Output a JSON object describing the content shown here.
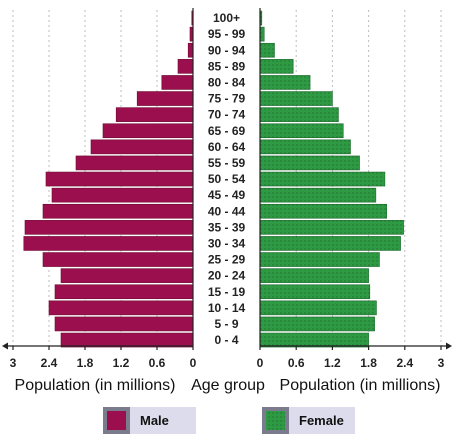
{
  "chart_data": {
    "type": "bar",
    "subtype": "population-pyramid",
    "title": "",
    "categories": [
      "100+",
      "95 - 99",
      "90 - 94",
      "85 - 89",
      "80 - 84",
      "75 - 79",
      "70 - 74",
      "65 - 69",
      "60 - 64",
      "55 - 59",
      "50 - 54",
      "45 - 49",
      "40 - 44",
      "35 - 39",
      "30 - 34",
      "25 - 29",
      "20 - 24",
      "15 - 19",
      "10 - 14",
      "5 - 9",
      "0 - 4"
    ],
    "series": [
      {
        "name": "Male",
        "color": "#9c0f4e",
        "values": [
          0.02,
          0.05,
          0.08,
          0.25,
          0.52,
          0.93,
          1.28,
          1.5,
          1.7,
          1.95,
          2.45,
          2.35,
          2.5,
          2.8,
          2.82,
          2.5,
          2.2,
          2.3,
          2.4,
          2.3,
          2.2
        ]
      },
      {
        "name": "Female",
        "color": "#2e9a43",
        "values": [
          0.03,
          0.07,
          0.24,
          0.55,
          0.83,
          1.2,
          1.3,
          1.38,
          1.5,
          1.65,
          2.07,
          1.92,
          2.1,
          2.38,
          2.33,
          1.98,
          1.8,
          1.82,
          1.93,
          1.9,
          1.8
        ]
      }
    ],
    "xlabel_left": "Population (in millions)",
    "xlabel_center": "Age group",
    "xlabel_right": "Population (in millions)",
    "xticks_left": [
      "3",
      "2.4",
      "1.8",
      "1.2",
      "0.6",
      "0"
    ],
    "xticks_right": [
      "0",
      "0.6",
      "1.2",
      "1.8",
      "2.4",
      "3"
    ],
    "tick_values": [
      0,
      0.6,
      1.2,
      1.8,
      2.4,
      3
    ],
    "xlim": [
      0,
      3
    ],
    "grid": true,
    "legend": {
      "placement": "bottom",
      "entries": [
        "Male",
        "Female"
      ]
    }
  }
}
